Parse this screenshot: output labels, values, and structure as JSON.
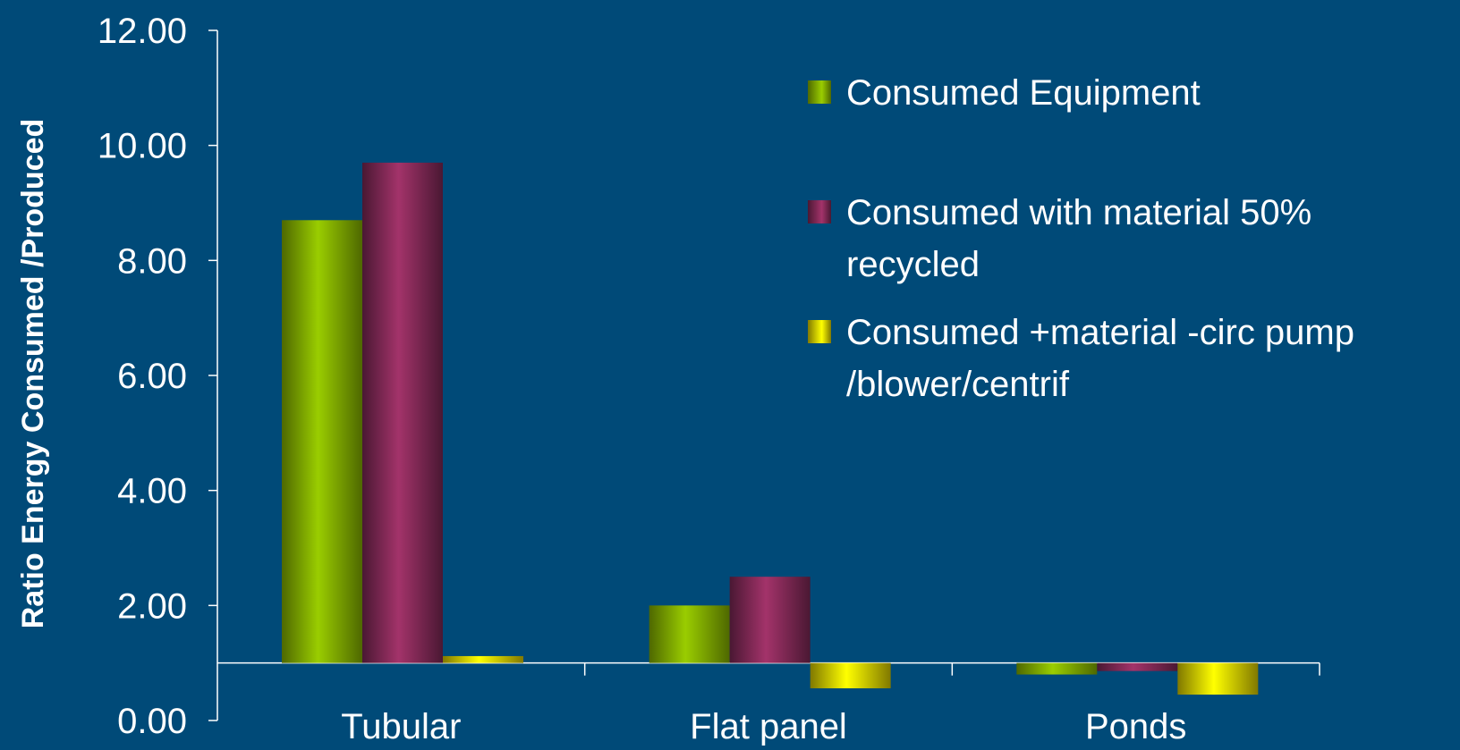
{
  "chart_data": {
    "type": "bar",
    "title": "",
    "xlabel": "",
    "ylabel": "Ratio Energy Consumed /Produced",
    "ylim": [
      0,
      12
    ],
    "baseline": 1,
    "y_ticks": [
      "0.00",
      "2.00",
      "4.00",
      "6.00",
      "8.00",
      "10.00",
      "12.00"
    ],
    "categories": [
      "Tubular",
      "Flat panel",
      "Ponds"
    ],
    "series": [
      {
        "name": "Consumed Equipment",
        "values": [
          8.7,
          2.0,
          0.8
        ]
      },
      {
        "name": "Consumed with material 50% recycled",
        "values": [
          9.7,
          2.5,
          0.86
        ]
      },
      {
        "name": "Consumed +material -circ pump /blower/centrif",
        "values": [
          1.12,
          0.56,
          0.45
        ]
      }
    ],
    "legend": {
      "position": "top-right",
      "entries": [
        [
          "Consumed Equipment"
        ],
        [
          "Consumed with material 50%",
          "recycled"
        ],
        [
          "Consumed +material -circ pump",
          "/blower/centrif"
        ]
      ]
    },
    "grid": false,
    "colors": {
      "background": "#004a78",
      "series_light": [
        "#9acd00",
        "#a3336a",
        "#ffff00"
      ],
      "series_dark": [
        "#4e6800",
        "#4a1833",
        "#807800"
      ],
      "axis": "#ffffff",
      "text": "#ffffff"
    }
  }
}
